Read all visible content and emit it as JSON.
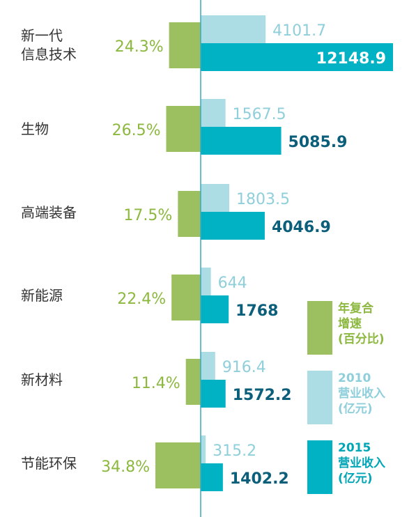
{
  "chart_data": {
    "type": "bar",
    "categories": [
      "新一代\n信息技术",
      "生物",
      "高端装备",
      "新能源",
      "新材料",
      "节能环保"
    ],
    "series": [
      {
        "name": "年复合\n增速\n(百分比)",
        "values": [
          24.3,
          26.5,
          17.5,
          22.4,
          11.4,
          34.8
        ],
        "labels": [
          "24.3%",
          "26.5%",
          "17.5%",
          "22.4%",
          "11.4%",
          "34.8%"
        ]
      },
      {
        "name": "2010\n营业收入\n(亿元)",
        "values": [
          4101.7,
          1567.5,
          1803.5,
          644,
          916.4,
          315.2
        ],
        "labels": [
          "4101.7",
          "1567.5",
          "1803.5",
          "644",
          "916.4",
          "315.2"
        ]
      },
      {
        "name": "2015\n营业收入\n(亿元)",
        "values": [
          12148.9,
          5085.9,
          4046.9,
          1768,
          1572.2,
          1402.2
        ],
        "labels": [
          "12148.9",
          "5085.9",
          "4046.9",
          "1768",
          "1572.2",
          "1402.2"
        ]
      }
    ],
    "colors": {
      "growth": "#9cbf5f",
      "growth_text": "#8cb83f",
      "y2010": "#acdce4",
      "y2010_text": "#8fcfdb",
      "y2015": "#00b2c3",
      "axis": "#3aa9c0"
    }
  }
}
